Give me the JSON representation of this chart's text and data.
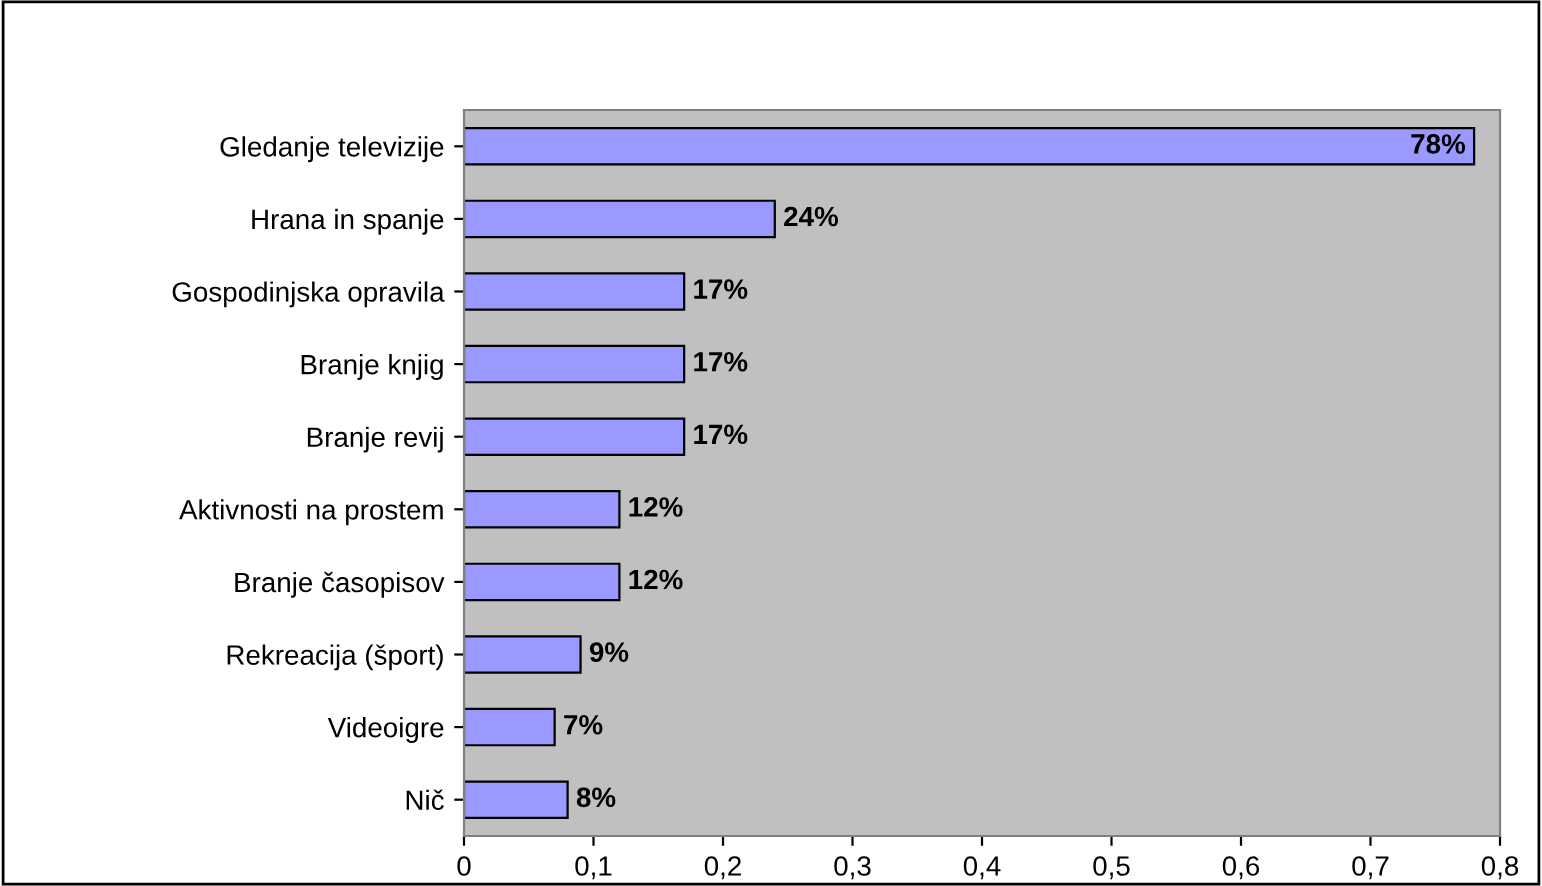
{
  "chart_data": {
    "type": "bar",
    "orientation": "horizontal",
    "categories": [
      "Gledanje televizije",
      "Hrana in spanje",
      "Gospodinjska opravila",
      "Branje knjig",
      "Branje revij",
      "Aktivnosti na prostem",
      "Branje časopisov",
      "Rekreacija (šport)",
      "Videoigre",
      "Nič"
    ],
    "values": [
      0.78,
      0.24,
      0.17,
      0.17,
      0.17,
      0.12,
      0.12,
      0.09,
      0.07,
      0.08
    ],
    "value_labels": [
      "78%",
      "24%",
      "17%",
      "17%",
      "17%",
      "12%",
      "12%",
      "9%",
      "7%",
      "8%"
    ],
    "color": "#9999ff",
    "xlim": [
      0,
      0.8
    ],
    "xticks": [
      0,
      {
        "value": 0.1,
        "label": "0,1"
      },
      {
        "value": 0.2,
        "label": "0,2"
      },
      {
        "value": 0.3,
        "label": "0,3"
      },
      {
        "value": 0.4,
        "label": "0,4"
      },
      {
        "value": 0.5,
        "label": "0,5"
      },
      {
        "value": 0.6,
        "label": "0,6"
      },
      {
        "value": 0.7,
        "label": "0,7"
      },
      {
        "value": 0.8,
        "label": "0,8"
      }
    ],
    "grid": false,
    "legend": false
  }
}
